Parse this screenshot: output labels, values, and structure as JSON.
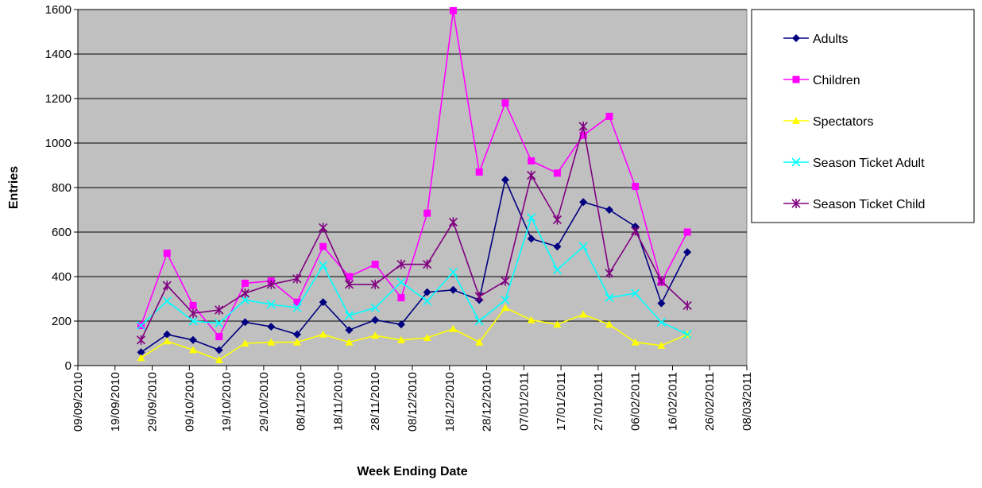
{
  "chart_data": {
    "type": "line",
    "title": "",
    "xlabel": "Week Ending Date",
    "ylabel": "Entries",
    "ylim": [
      0,
      1600
    ],
    "yticks": [
      0,
      200,
      400,
      600,
      800,
      1000,
      1200,
      1400,
      1600
    ],
    "xlim": [
      "2010-09-09",
      "2011-03-08"
    ],
    "xticks": [
      "09/09/2010",
      "19/09/2010",
      "29/09/2010",
      "09/10/2010",
      "19/10/2010",
      "29/10/2010",
      "08/11/2010",
      "18/11/2010",
      "28/11/2010",
      "08/12/2010",
      "18/12/2010",
      "28/12/2010",
      "07/01/2011",
      "17/01/2011",
      "27/01/2011",
      "06/02/2011",
      "16/02/2011",
      "26/02/2011",
      "08/03/2011"
    ],
    "grid": "horizontal",
    "plot_background": "#C0C0C0",
    "legend": "right",
    "x": [
      "2010-09-26",
      "2010-10-03",
      "2010-10-10",
      "2010-10-17",
      "2010-10-24",
      "2010-10-31",
      "2010-11-07",
      "2010-11-14",
      "2010-11-21",
      "2010-11-28",
      "2010-12-05",
      "2010-12-12",
      "2010-12-19",
      "2010-12-26",
      "2011-01-02",
      "2011-01-09",
      "2011-01-16",
      "2011-01-23",
      "2011-01-30",
      "2011-02-06",
      "2011-02-13",
      "2011-02-20"
    ],
    "series": [
      {
        "name": "Adults",
        "color": "#000080",
        "marker": "diamond",
        "values": [
          60,
          140,
          115,
          70,
          195,
          175,
          140,
          285,
          160,
          205,
          185,
          330,
          340,
          295,
          835,
          570,
          535,
          735,
          700,
          625,
          280,
          510
        ]
      },
      {
        "name": "Children",
        "color": "#FF00FF",
        "marker": "square",
        "values": [
          180,
          505,
          270,
          130,
          370,
          380,
          285,
          535,
          400,
          455,
          305,
          685,
          1595,
          870,
          1180,
          920,
          865,
          1035,
          1120,
          805,
          375,
          600
        ]
      },
      {
        "name": "Spectators",
        "color": "#FFFF00",
        "marker": "triangle",
        "values": [
          35,
          110,
          70,
          25,
          100,
          105,
          105,
          140,
          105,
          135,
          115,
          125,
          165,
          105,
          260,
          205,
          185,
          230,
          185,
          105,
          90,
          140
        ]
      },
      {
        "name": "Season Ticket Adult",
        "color": "#00FFFF",
        "marker": "x",
        "values": [
          180,
          290,
          200,
          190,
          295,
          275,
          260,
          450,
          225,
          260,
          375,
          290,
          420,
          200,
          295,
          665,
          430,
          535,
          305,
          325,
          195,
          140
        ]
      },
      {
        "name": "Season Ticket Child",
        "color": "#800080",
        "marker": "star",
        "values": [
          115,
          360,
          235,
          250,
          325,
          365,
          390,
          620,
          365,
          365,
          455,
          455,
          645,
          310,
          380,
          855,
          655,
          1075,
          415,
          605,
          380,
          270
        ]
      }
    ]
  }
}
